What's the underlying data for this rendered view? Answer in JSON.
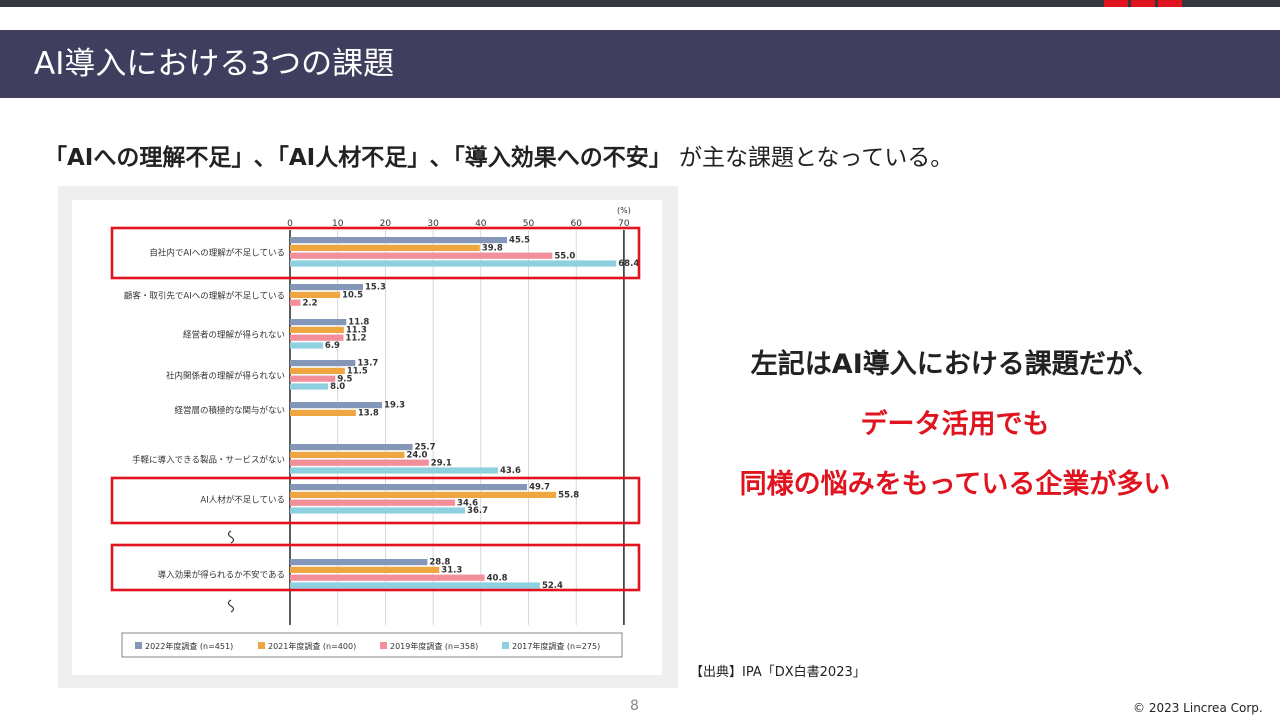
{
  "slide": {
    "title": "AI導入における3つの課題",
    "headline_bold": "「AIへの理解不足」､「AI人材不足」､「導入効果への不安」",
    "headline_rest": "が主な課題となっている。",
    "message_line1": "左記はAI導入における課題だが、",
    "message_line2": "データ活用でも",
    "message_line3": "同様の悩みをもっている企業が多い",
    "source": "【出典】IPA「DX白書2023」",
    "page_number": "8",
    "copyright": "© 2023 Lincrea Corp.",
    "colors": {
      "accent_red": "#e0141e",
      "title_bar": "#3f3e5f",
      "top_bar": "#34383f"
    }
  },
  "chart_data": {
    "type": "bar",
    "orientation": "horizontal",
    "unit_label": "(%)",
    "xlim": [
      0,
      70
    ],
    "xticks": [
      0,
      10,
      20,
      30,
      40,
      50,
      60,
      70
    ],
    "grid": true,
    "legend_position": "bottom",
    "categories": [
      "自社内でAIへの理解が不足している",
      "顧客・取引先でAIへの理解が不足している",
      "経営者の理解が得られない",
      "社内関係者の理解が得られない",
      "経営層の積極的な関与がない",
      "手軽に導入できる製品・サービスがない",
      "AI人材が不足している",
      "導入効果が得られるか不安である"
    ],
    "series": [
      {
        "name": "2022年度調査 (n=451)",
        "color": "#8497b9",
        "values": [
          45.5,
          15.3,
          11.8,
          13.7,
          19.3,
          25.7,
          49.7,
          28.8
        ]
      },
      {
        "name": "2021年度調査 (n=400)",
        "color": "#f0a640",
        "values": [
          39.8,
          10.5,
          11.3,
          11.5,
          13.8,
          24.0,
          55.8,
          31.3
        ]
      },
      {
        "name": "2019年度調査 (n=358)",
        "color": "#f38f9a",
        "values": [
          55.0,
          2.2,
          11.2,
          9.5,
          null,
          29.1,
          34.6,
          40.8
        ]
      },
      {
        "name": "2017年度調査 (n=275)",
        "color": "#8fd0e0",
        "values": [
          68.4,
          null,
          6.9,
          8.0,
          null,
          43.6,
          36.7,
          52.4
        ]
      }
    ],
    "highlighted_categories": [
      0,
      6,
      7
    ],
    "highlight_color": "#e0141e",
    "axis_break_after_categories": [
      6,
      7
    ]
  }
}
